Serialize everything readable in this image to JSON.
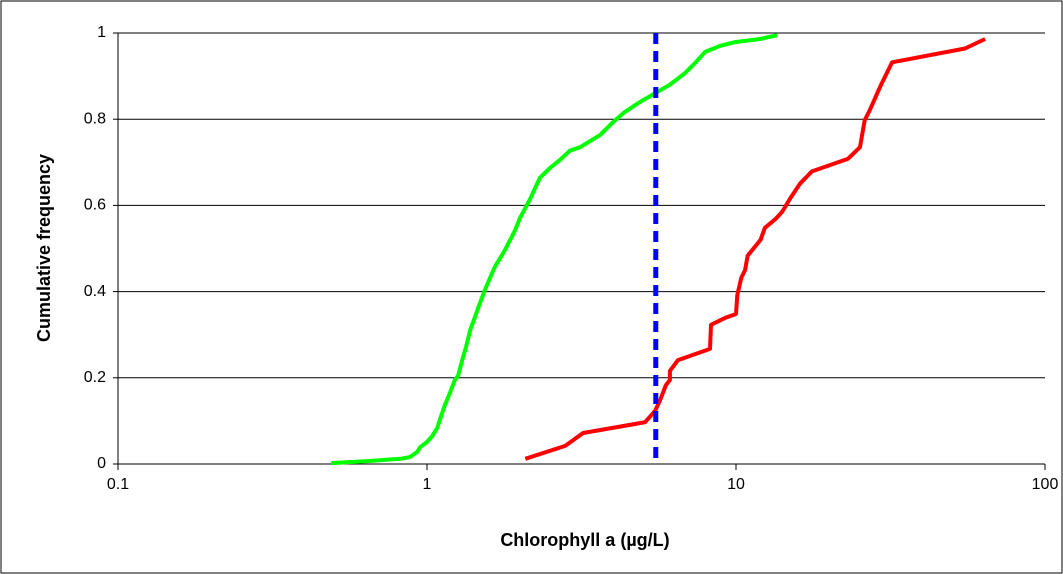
{
  "chart_data": {
    "type": "line",
    "xlabel": "Chlorophyll a (µg/L)",
    "ylabel": "Cumulative frequency",
    "xscale": "log",
    "xlim": [
      0.1,
      100
    ],
    "xticks": [
      0.1,
      1,
      10,
      100
    ],
    "ylim": [
      0,
      1
    ],
    "yticks": [
      0,
      0.2,
      0.4,
      0.6,
      0.8,
      1
    ],
    "grid": true,
    "series": [
      {
        "color": "#00ff00",
        "x": [
          0.49,
          0.65,
          0.82,
          0.88,
          0.93,
          0.95,
          1.0,
          1.04,
          1.08,
          1.1,
          1.14,
          1.19,
          1.23,
          1.26,
          1.3,
          1.34,
          1.38,
          1.43,
          1.48,
          1.54,
          1.6,
          1.66,
          1.79,
          1.93,
          2.0,
          2.15,
          2.32,
          2.5,
          2.69,
          2.9,
          3.13,
          3.63,
          4.0,
          4.37,
          4.89,
          5.47,
          6.11,
          6.84,
          7.36,
          7.94,
          8.87,
          9.93,
          11.97,
          13.6
        ],
        "values": [
          0.002,
          0.007,
          0.012,
          0.016,
          0.028,
          0.039,
          0.051,
          0.065,
          0.084,
          0.102,
          0.135,
          0.167,
          0.195,
          0.204,
          0.241,
          0.274,
          0.311,
          0.341,
          0.371,
          0.404,
          0.432,
          0.458,
          0.497,
          0.543,
          0.571,
          0.613,
          0.664,
          0.687,
          0.705,
          0.727,
          0.735,
          0.763,
          0.793,
          0.817,
          0.84,
          0.86,
          0.88,
          0.907,
          0.93,
          0.956,
          0.97,
          0.979,
          0.986,
          0.995
        ]
      },
      {
        "color": "#ff0000",
        "x": [
          2.08,
          2.8,
          3.2,
          5.08,
          5.47,
          5.68,
          5.93,
          6.11,
          6.11,
          6.49,
          8.24,
          8.3,
          9.21,
          10.0,
          10.1,
          10.4,
          10.7,
          10.9,
          12.0,
          12.4,
          13.4,
          14.1,
          15.0,
          16.1,
          17.6,
          23.0,
          25.2,
          26.1,
          27.1,
          29.3,
          32.0,
          55.1,
          64.0
        ],
        "values": [
          0.012,
          0.042,
          0.072,
          0.097,
          0.123,
          0.148,
          0.183,
          0.195,
          0.216,
          0.241,
          0.267,
          0.323,
          0.339,
          0.348,
          0.392,
          0.432,
          0.45,
          0.483,
          0.52,
          0.548,
          0.568,
          0.585,
          0.617,
          0.65,
          0.679,
          0.708,
          0.735,
          0.798,
          0.821,
          0.876,
          0.932,
          0.964,
          0.986
        ]
      }
    ],
    "vline": {
      "x": 5.5,
      "color": "#0000ff",
      "dashed": true
    }
  }
}
